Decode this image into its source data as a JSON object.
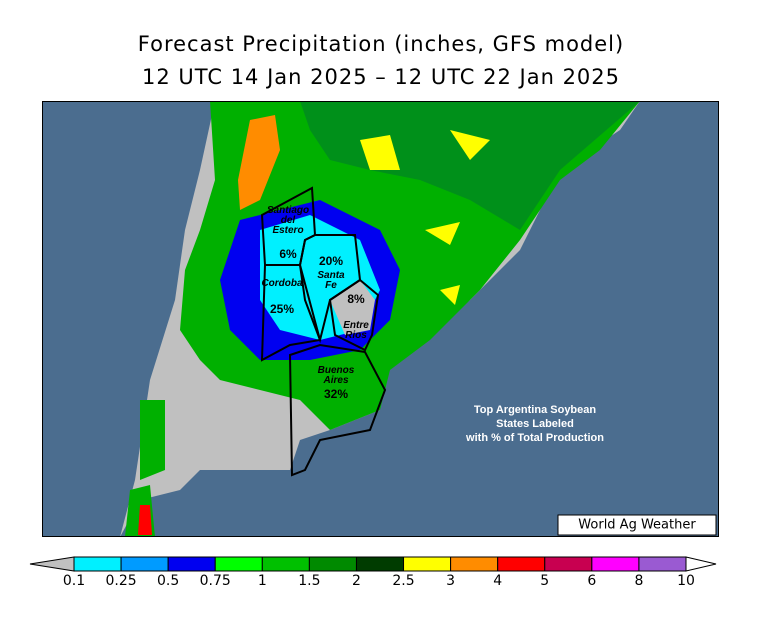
{
  "header": {
    "title": "Forecast Precipitation (inches, GFS model)",
    "subtitle": "12 UTC 14 Jan 2025 – 12 UTC 22 Jan 2025"
  },
  "map": {
    "states": [
      {
        "name": "Santiago del Estero",
        "share": "6%"
      },
      {
        "name": "Santa Fe",
        "share": "20%"
      },
      {
        "name": "Cordoba",
        "share": "25%"
      },
      {
        "name": "Entre Rios",
        "share": "8%"
      },
      {
        "name": "Buenos Aires",
        "share": "32%"
      }
    ],
    "note": "Top Argentina Soybean States Labeled with % of Total Production",
    "credit": "World Ag Weather"
  },
  "legend": {
    "ticks": [
      0.1,
      0.25,
      0.5,
      0.75,
      1,
      1.5,
      2,
      2.5,
      3,
      4,
      5,
      6,
      8,
      10
    ],
    "colors": [
      "#00f0ff",
      "#009bff",
      "#0000f0",
      "#00ff00",
      "#00c000",
      "#008a00",
      "#003c00",
      "#ffff00",
      "#ff8c00",
      "#ff0000",
      "#c80050",
      "#ff00ff",
      "#9a5ad2"
    ],
    "under_color": "#c0c0c0",
    "over_color": "#ffffff"
  }
}
